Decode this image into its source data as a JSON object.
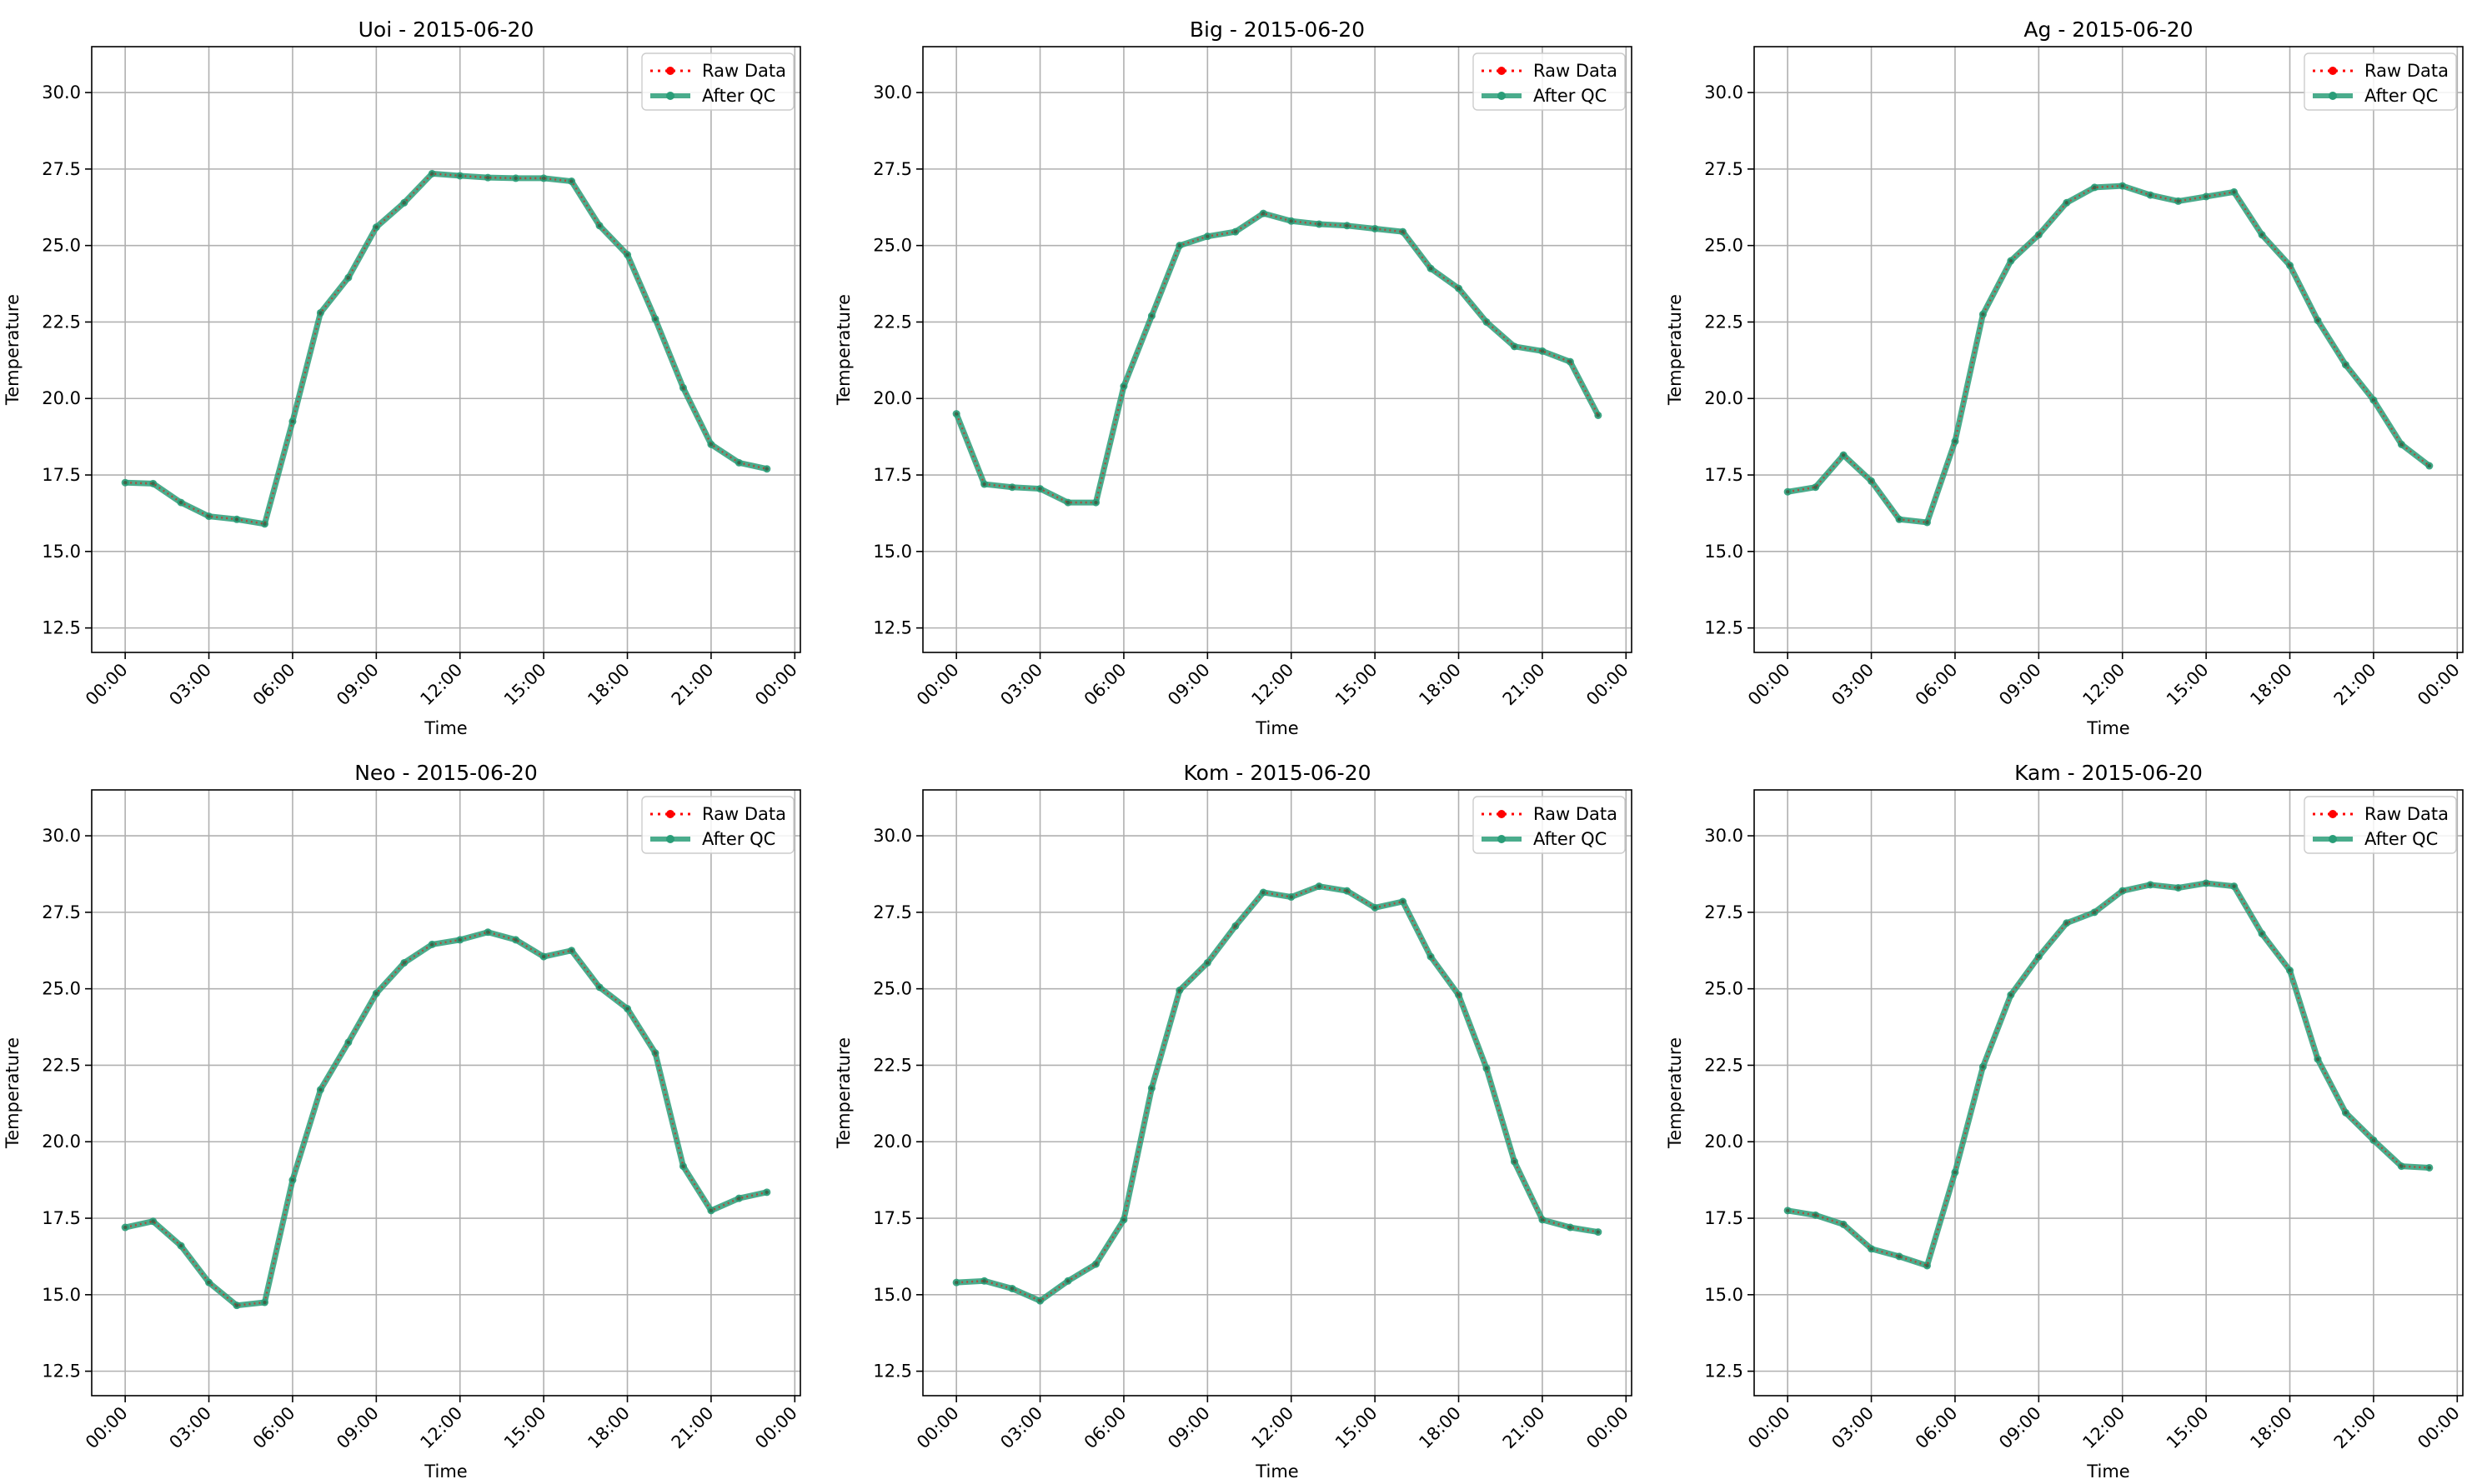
{
  "colors": {
    "raw": "#ff0000",
    "qc": "#2a9d78",
    "grid": "#b0b0b0",
    "axis": "#000000"
  },
  "chart_data": [
    {
      "type": "line",
      "title": "Uoi - 2015-06-20",
      "xlabel": "Time",
      "ylabel": "Temperature",
      "xticks": [
        "00:00",
        "03:00",
        "06:00",
        "09:00",
        "12:00",
        "15:00",
        "18:00",
        "21:00",
        "00:00"
      ],
      "yticks": [
        "12.5",
        "15.0",
        "17.5",
        "20.0",
        "22.5",
        "25.0",
        "27.5",
        "30.0"
      ],
      "ylim": [
        11.7,
        31.5
      ],
      "xlim_hours": [
        -1.2,
        24.2
      ],
      "grid": true,
      "legend_position": "top-right",
      "legend": [
        "Raw Data",
        "After QC"
      ],
      "x_hours": [
        0,
        1,
        2,
        3,
        4,
        5,
        6,
        7,
        8,
        9,
        10,
        11,
        12,
        13,
        14,
        15,
        16,
        17,
        18,
        19,
        20,
        21,
        22,
        23
      ],
      "series": [
        {
          "name": "Raw Data",
          "values": [
            17.25,
            17.22,
            16.6,
            16.15,
            16.05,
            15.9,
            19.25,
            22.8,
            23.95,
            25.6,
            26.4,
            27.35,
            27.28,
            27.22,
            27.2,
            27.2,
            27.1,
            25.65,
            24.7,
            22.6,
            20.35,
            18.5,
            17.9,
            17.7
          ]
        },
        {
          "name": "After QC",
          "values": [
            17.25,
            17.22,
            16.6,
            16.15,
            16.05,
            15.9,
            19.25,
            22.8,
            23.95,
            25.6,
            26.4,
            27.35,
            27.28,
            27.22,
            27.2,
            27.2,
            27.1,
            25.65,
            24.7,
            22.6,
            20.35,
            18.5,
            17.9,
            17.7
          ]
        }
      ]
    },
    {
      "type": "line",
      "title": "Big - 2015-06-20",
      "xlabel": "Time",
      "ylabel": "Temperature",
      "xticks": [
        "00:00",
        "03:00",
        "06:00",
        "09:00",
        "12:00",
        "15:00",
        "18:00",
        "21:00",
        "00:00"
      ],
      "yticks": [
        "12.5",
        "15.0",
        "17.5",
        "20.0",
        "22.5",
        "25.0",
        "27.5",
        "30.0"
      ],
      "ylim": [
        11.7,
        31.5
      ],
      "xlim_hours": [
        -1.2,
        24.2
      ],
      "grid": true,
      "legend_position": "top-right",
      "legend": [
        "Raw Data",
        "After QC"
      ],
      "x_hours": [
        0,
        1,
        2,
        3,
        4,
        5,
        6,
        7,
        8,
        9,
        10,
        11,
        12,
        13,
        14,
        15,
        16,
        17,
        18,
        19,
        20,
        21,
        22,
        23
      ],
      "series": [
        {
          "name": "Raw Data",
          "values": [
            19.5,
            17.2,
            17.1,
            17.05,
            16.6,
            16.6,
            20.4,
            22.7,
            25.0,
            25.3,
            25.45,
            26.05,
            25.8,
            25.7,
            25.65,
            25.55,
            25.45,
            24.25,
            23.6,
            22.5,
            21.7,
            21.55,
            21.2,
            19.45
          ]
        },
        {
          "name": "After QC",
          "values": [
            19.5,
            17.2,
            17.1,
            17.05,
            16.6,
            16.6,
            20.4,
            22.7,
            25.0,
            25.3,
            25.45,
            26.05,
            25.8,
            25.7,
            25.65,
            25.55,
            25.45,
            24.25,
            23.6,
            22.5,
            21.7,
            21.55,
            21.2,
            19.45
          ]
        }
      ]
    },
    {
      "type": "line",
      "title": "Ag - 2015-06-20",
      "xlabel": "Time",
      "ylabel": "Temperature",
      "xticks": [
        "00:00",
        "03:00",
        "06:00",
        "09:00",
        "12:00",
        "15:00",
        "18:00",
        "21:00",
        "00:00"
      ],
      "yticks": [
        "12.5",
        "15.0",
        "17.5",
        "20.0",
        "22.5",
        "25.0",
        "27.5",
        "30.0"
      ],
      "ylim": [
        11.7,
        31.5
      ],
      "xlim_hours": [
        -1.2,
        24.2
      ],
      "grid": true,
      "legend_position": "top-right",
      "legend": [
        "Raw Data",
        "After QC"
      ],
      "x_hours": [
        0,
        1,
        2,
        3,
        4,
        5,
        6,
        7,
        8,
        9,
        10,
        11,
        12,
        13,
        14,
        15,
        16,
        17,
        18,
        19,
        20,
        21,
        22,
        23
      ],
      "series": [
        {
          "name": "Raw Data",
          "values": [
            16.95,
            17.1,
            18.15,
            17.3,
            16.05,
            15.95,
            18.6,
            22.75,
            24.5,
            25.35,
            26.4,
            26.9,
            26.95,
            26.65,
            26.45,
            26.6,
            26.75,
            25.35,
            24.35,
            22.55,
            21.1,
            19.95,
            18.5,
            17.8
          ]
        },
        {
          "name": "After QC",
          "values": [
            16.95,
            17.1,
            18.15,
            17.3,
            16.05,
            15.95,
            18.6,
            22.75,
            24.5,
            25.35,
            26.4,
            26.9,
            26.95,
            26.65,
            26.45,
            26.6,
            26.75,
            25.35,
            24.35,
            22.55,
            21.1,
            19.95,
            18.5,
            17.8
          ]
        }
      ]
    },
    {
      "type": "line",
      "title": "Neo - 2015-06-20",
      "xlabel": "Time",
      "ylabel": "Temperature",
      "xticks": [
        "00:00",
        "03:00",
        "06:00",
        "09:00",
        "12:00",
        "15:00",
        "18:00",
        "21:00",
        "00:00"
      ],
      "yticks": [
        "12.5",
        "15.0",
        "17.5",
        "20.0",
        "22.5",
        "25.0",
        "27.5",
        "30.0"
      ],
      "ylim": [
        11.7,
        31.5
      ],
      "xlim_hours": [
        -1.2,
        24.2
      ],
      "grid": true,
      "legend_position": "top-right",
      "legend": [
        "Raw Data",
        "After QC"
      ],
      "x_hours": [
        0,
        1,
        2,
        3,
        4,
        5,
        6,
        7,
        8,
        9,
        10,
        11,
        12,
        13,
        14,
        15,
        16,
        17,
        18,
        19,
        20,
        21,
        22,
        23
      ],
      "series": [
        {
          "name": "Raw Data",
          "values": [
            17.2,
            17.4,
            16.6,
            15.4,
            14.65,
            14.75,
            18.75,
            21.7,
            23.25,
            24.85,
            25.85,
            26.45,
            26.6,
            26.85,
            26.6,
            26.05,
            26.25,
            25.05,
            24.35,
            22.9,
            19.2,
            17.75,
            18.15,
            18.35
          ]
        },
        {
          "name": "After QC",
          "values": [
            17.2,
            17.4,
            16.6,
            15.4,
            14.65,
            14.75,
            18.75,
            21.7,
            23.25,
            24.85,
            25.85,
            26.45,
            26.6,
            26.85,
            26.6,
            26.05,
            26.25,
            25.05,
            24.35,
            22.9,
            19.2,
            17.75,
            18.15,
            18.35
          ]
        }
      ]
    },
    {
      "type": "line",
      "title": "Kom - 2015-06-20",
      "xlabel": "Time",
      "ylabel": "Temperature",
      "xticks": [
        "00:00",
        "03:00",
        "06:00",
        "09:00",
        "12:00",
        "15:00",
        "18:00",
        "21:00",
        "00:00"
      ],
      "yticks": [
        "12.5",
        "15.0",
        "17.5",
        "20.0",
        "22.5",
        "25.0",
        "27.5",
        "30.0"
      ],
      "ylim": [
        11.7,
        31.5
      ],
      "xlim_hours": [
        -1.2,
        24.2
      ],
      "grid": true,
      "legend_position": "top-right",
      "legend": [
        "Raw Data",
        "After QC"
      ],
      "x_hours": [
        0,
        1,
        2,
        3,
        4,
        5,
        6,
        7,
        8,
        9,
        10,
        11,
        12,
        13,
        14,
        15,
        16,
        17,
        18,
        19,
        20,
        21,
        22,
        23
      ],
      "series": [
        {
          "name": "Raw Data",
          "values": [
            15.4,
            15.45,
            15.2,
            14.8,
            15.45,
            16.0,
            17.45,
            21.75,
            24.95,
            25.85,
            27.05,
            28.15,
            28.0,
            28.35,
            28.2,
            27.65,
            27.85,
            26.05,
            24.8,
            22.4,
            19.35,
            17.45,
            17.2,
            17.05
          ]
        },
        {
          "name": "After QC",
          "values": [
            15.4,
            15.45,
            15.2,
            14.8,
            15.45,
            16.0,
            17.45,
            21.75,
            24.95,
            25.85,
            27.05,
            28.15,
            28.0,
            28.35,
            28.2,
            27.65,
            27.85,
            26.05,
            24.8,
            22.4,
            19.35,
            17.45,
            17.2,
            17.05
          ]
        }
      ]
    },
    {
      "type": "line",
      "title": "Kam - 2015-06-20",
      "xlabel": "Time",
      "ylabel": "Temperature",
      "xticks": [
        "00:00",
        "03:00",
        "06:00",
        "09:00",
        "12:00",
        "15:00",
        "18:00",
        "21:00",
        "00:00"
      ],
      "yticks": [
        "12.5",
        "15.0",
        "17.5",
        "20.0",
        "22.5",
        "25.0",
        "27.5",
        "30.0"
      ],
      "ylim": [
        11.7,
        31.5
      ],
      "xlim_hours": [
        -1.2,
        24.2
      ],
      "grid": true,
      "legend_position": "top-right",
      "legend": [
        "Raw Data",
        "After QC"
      ],
      "x_hours": [
        0,
        1,
        2,
        3,
        4,
        5,
        6,
        7,
        8,
        9,
        10,
        11,
        12,
        13,
        14,
        15,
        16,
        17,
        18,
        19,
        20,
        21,
        22,
        23
      ],
      "series": [
        {
          "name": "Raw Data",
          "values": [
            17.75,
            17.6,
            17.3,
            16.5,
            16.25,
            15.95,
            19.0,
            22.45,
            24.8,
            26.05,
            27.15,
            27.5,
            28.2,
            28.4,
            28.3,
            28.45,
            28.35,
            26.8,
            25.6,
            22.7,
            20.95,
            20.05,
            19.2,
            19.15
          ]
        },
        {
          "name": "After QC",
          "values": [
            17.75,
            17.6,
            17.3,
            16.5,
            16.25,
            15.95,
            19.0,
            22.45,
            24.8,
            26.05,
            27.15,
            27.5,
            28.2,
            28.4,
            28.3,
            28.45,
            28.35,
            26.8,
            25.6,
            22.7,
            20.95,
            20.05,
            19.2,
            19.15
          ]
        }
      ]
    }
  ]
}
